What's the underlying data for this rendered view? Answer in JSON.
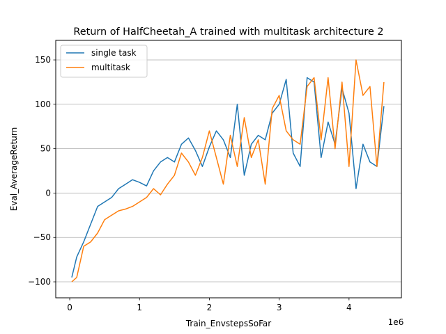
{
  "chart_data": {
    "type": "line",
    "title": "Return of HalfCheetah_A trained with multitask architecture 2",
    "xlabel": "Train_EnvstepsSoFar",
    "ylabel": "Eval_AverageReturn",
    "x_offset_label": "1e6",
    "xlim": [
      -0.2,
      4.75
    ],
    "ylim": [
      -118,
      172
    ],
    "x_ticks": [
      0,
      1,
      2,
      3,
      4
    ],
    "y_ticks": [
      -100,
      -50,
      0,
      50,
      100,
      150
    ],
    "grid": "y-axis",
    "legend_position": "top-left",
    "series": [
      {
        "name": "single task",
        "color": "#1f77b4",
        "x": [
          0.03,
          0.1,
          0.2,
          0.3,
          0.4,
          0.5,
          0.6,
          0.7,
          0.8,
          0.9,
          1.0,
          1.1,
          1.2,
          1.3,
          1.4,
          1.5,
          1.6,
          1.7,
          1.8,
          1.9,
          2.0,
          2.1,
          2.2,
          2.3,
          2.4,
          2.5,
          2.6,
          2.7,
          2.8,
          2.9,
          3.0,
          3.1,
          3.2,
          3.3,
          3.4,
          3.5,
          3.6,
          3.7,
          3.8,
          3.9,
          4.0,
          4.1,
          4.2,
          4.3,
          4.4,
          4.5
        ],
        "values": [
          -95,
          -72,
          -55,
          -35,
          -15,
          -10,
          -5,
          5,
          10,
          15,
          12,
          8,
          25,
          35,
          40,
          35,
          55,
          62,
          48,
          30,
          52,
          70,
          60,
          40,
          100,
          20,
          55,
          65,
          60,
          90,
          100,
          128,
          45,
          30,
          130,
          125,
          40,
          80,
          55,
          118,
          90,
          5,
          55,
          35,
          30,
          98
        ]
      },
      {
        "name": "multitask",
        "color": "#ff7f0e",
        "x": [
          0.03,
          0.1,
          0.2,
          0.3,
          0.4,
          0.5,
          0.6,
          0.7,
          0.8,
          0.9,
          1.0,
          1.1,
          1.2,
          1.3,
          1.4,
          1.5,
          1.6,
          1.7,
          1.8,
          1.9,
          2.0,
          2.1,
          2.2,
          2.3,
          2.4,
          2.5,
          2.6,
          2.7,
          2.8,
          2.9,
          3.0,
          3.1,
          3.2,
          3.3,
          3.4,
          3.5,
          3.6,
          3.7,
          3.8,
          3.9,
          4.0,
          4.1,
          4.2,
          4.3,
          4.4,
          4.5
        ],
        "values": [
          -100,
          -95,
          -60,
          -55,
          -45,
          -30,
          -25,
          -20,
          -18,
          -15,
          -10,
          -5,
          5,
          -2,
          10,
          20,
          45,
          35,
          20,
          40,
          70,
          40,
          10,
          65,
          30,
          85,
          40,
          60,
          10,
          95,
          110,
          70,
          60,
          55,
          120,
          130,
          60,
          130,
          50,
          125,
          30,
          150,
          110,
          120,
          30,
          125
        ]
      }
    ]
  }
}
